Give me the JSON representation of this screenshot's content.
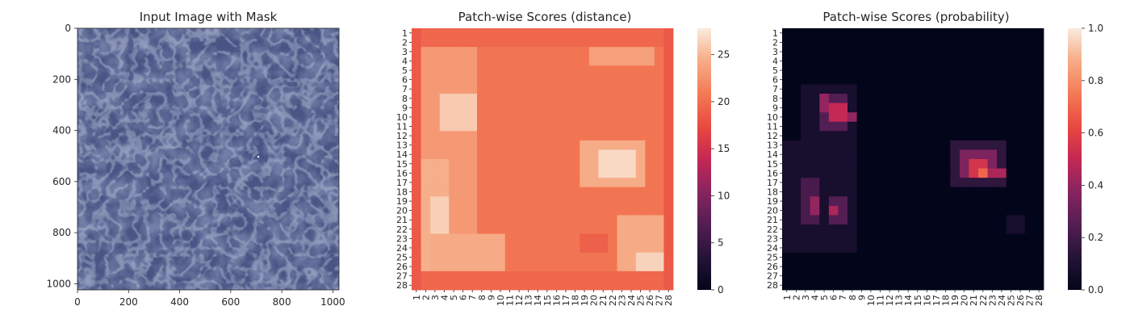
{
  "chart_data": [
    {
      "type": "image",
      "title": "Input Image with Mask",
      "xlim": [
        0,
        1024
      ],
      "ylim": [
        1024,
        0
      ],
      "xticks": [
        0,
        200,
        400,
        600,
        800,
        1000
      ],
      "yticks": [
        0,
        200,
        400,
        600,
        800,
        1000
      ],
      "xlabel": "",
      "ylabel": "",
      "image": {
        "description": "blue-grey leather texture",
        "base_color": "#4a5585",
        "mask_marks": [
          [
            708,
            503
          ]
        ]
      }
    },
    {
      "type": "heatmap",
      "title": "Patch-wise Scores (distance)",
      "colormap": "rocket",
      "rows": 28,
      "cols": 28,
      "xticklabels": [
        "1",
        "2",
        "3",
        "4",
        "5",
        "6",
        "7",
        "8",
        "9",
        "10",
        "11",
        "12",
        "13",
        "14",
        "15",
        "16",
        "17",
        "18",
        "19",
        "20",
        "21",
        "22",
        "23",
        "24",
        "25",
        "26",
        "27",
        "28"
      ],
      "yticklabels": [
        "1",
        "2",
        "3",
        "4",
        "5",
        "6",
        "7",
        "8",
        "9",
        "10",
        "11",
        "12",
        "13",
        "14",
        "15",
        "16",
        "17",
        "18",
        "19",
        "20",
        "21",
        "22",
        "23",
        "24",
        "25",
        "26",
        "27",
        "28"
      ],
      "colorbar": {
        "min": 0,
        "max": 27.8,
        "ticks": [
          0,
          5,
          10,
          15,
          20,
          25
        ]
      },
      "regions": [
        {
          "rows": [
            1,
            28
          ],
          "cols": [
            1,
            28
          ],
          "value": 20.5
        },
        {
          "rows": [
            1,
            2
          ],
          "cols": [
            1,
            28
          ],
          "value": 19.5
        },
        {
          "rows": [
            27,
            28
          ],
          "cols": [
            1,
            28
          ],
          "value": 19.5
        },
        {
          "rows": [
            1,
            28
          ],
          "cols": [
            1,
            1
          ],
          "value": 18.5
        },
        {
          "rows": [
            1,
            28
          ],
          "cols": [
            28,
            28
          ],
          "value": 18.5
        },
        {
          "rows": [
            3,
            26
          ],
          "cols": [
            2,
            7
          ],
          "value": 23.0
        },
        {
          "rows": [
            8,
            11
          ],
          "cols": [
            4,
            7
          ],
          "value": 26.0
        },
        {
          "rows": [
            15,
            26
          ],
          "cols": [
            2,
            4
          ],
          "value": 24.5
        },
        {
          "rows": [
            19,
            22
          ],
          "cols": [
            3,
            4
          ],
          "value": 26.3
        },
        {
          "rows": [
            23,
            26
          ],
          "cols": [
            3,
            10
          ],
          "value": 24.2
        },
        {
          "rows": [
            3,
            4
          ],
          "cols": [
            20,
            26
          ],
          "value": 23.5
        },
        {
          "rows": [
            13,
            17
          ],
          "cols": [
            19,
            25
          ],
          "value": 24.3
        },
        {
          "rows": [
            14,
            16
          ],
          "cols": [
            21,
            24
          ],
          "value": 26.8
        },
        {
          "rows": [
            21,
            26
          ],
          "cols": [
            23,
            27
          ],
          "value": 24.2
        },
        {
          "rows": [
            25,
            26
          ],
          "cols": [
            25,
            27
          ],
          "value": 26.5
        },
        {
          "rows": [
            23,
            24
          ],
          "cols": [
            19,
            21
          ],
          "value": 19.0
        }
      ]
    },
    {
      "type": "heatmap",
      "title": "Patch-wise Scores (probability)",
      "colormap": "rocket",
      "rows": 28,
      "cols": 28,
      "xticklabels": [
        "1",
        "2",
        "3",
        "4",
        "5",
        "6",
        "7",
        "8",
        "9",
        "10",
        "11",
        "12",
        "13",
        "14",
        "15",
        "16",
        "17",
        "18",
        "19",
        "20",
        "21",
        "22",
        "23",
        "24",
        "25",
        "26",
        "27",
        "28"
      ],
      "yticklabels": [
        "1",
        "2",
        "3",
        "4",
        "5",
        "6",
        "7",
        "8",
        "9",
        "10",
        "11",
        "12",
        "13",
        "14",
        "15",
        "16",
        "17",
        "18",
        "19",
        "20",
        "21",
        "22",
        "23",
        "24",
        "25",
        "26",
        "27",
        "28"
      ],
      "colorbar": {
        "min": 0,
        "max": 1.0,
        "ticks": [
          0.0,
          0.2,
          0.4,
          0.6,
          0.8,
          1.0
        ]
      },
      "regions": [
        {
          "rows": [
            1,
            28
          ],
          "cols": [
            1,
            28
          ],
          "value": 0.0
        },
        {
          "rows": [
            7,
            12
          ],
          "cols": [
            3,
            8
          ],
          "value": 0.08
        },
        {
          "rows": [
            8,
            11
          ],
          "cols": [
            5,
            7
          ],
          "value": 0.25
        },
        {
          "rows": [
            8,
            9
          ],
          "cols": [
            5,
            5
          ],
          "value": 0.4
        },
        {
          "rows": [
            9,
            10
          ],
          "cols": [
            6,
            7
          ],
          "value": 0.5
        },
        {
          "rows": [
            10,
            10
          ],
          "cols": [
            8,
            8
          ],
          "value": 0.4
        },
        {
          "rows": [
            13,
            17
          ],
          "cols": [
            19,
            24
          ],
          "value": 0.15
        },
        {
          "rows": [
            14,
            16
          ],
          "cols": [
            20,
            23
          ],
          "value": 0.35
        },
        {
          "rows": [
            15,
            16
          ],
          "cols": [
            21,
            22
          ],
          "value": 0.55
        },
        {
          "rows": [
            16,
            16
          ],
          "cols": [
            22,
            22
          ],
          "value": 0.7
        },
        {
          "rows": [
            15,
            15
          ],
          "cols": [
            22,
            22
          ],
          "value": 0.55
        },
        {
          "rows": [
            16,
            16
          ],
          "cols": [
            23,
            24
          ],
          "value": 0.45
        },
        {
          "rows": [
            13,
            24
          ],
          "cols": [
            1,
            8
          ],
          "value": 0.08
        },
        {
          "rows": [
            17,
            21
          ],
          "cols": [
            3,
            4
          ],
          "value": 0.22
        },
        {
          "rows": [
            19,
            20
          ],
          "cols": [
            4,
            4
          ],
          "value": 0.4
        },
        {
          "rows": [
            19,
            21
          ],
          "cols": [
            6,
            7
          ],
          "value": 0.25
        },
        {
          "rows": [
            20,
            20
          ],
          "cols": [
            6,
            6
          ],
          "value": 0.45
        },
        {
          "rows": [
            21,
            22
          ],
          "cols": [
            25,
            26
          ],
          "value": 0.08
        }
      ]
    }
  ]
}
